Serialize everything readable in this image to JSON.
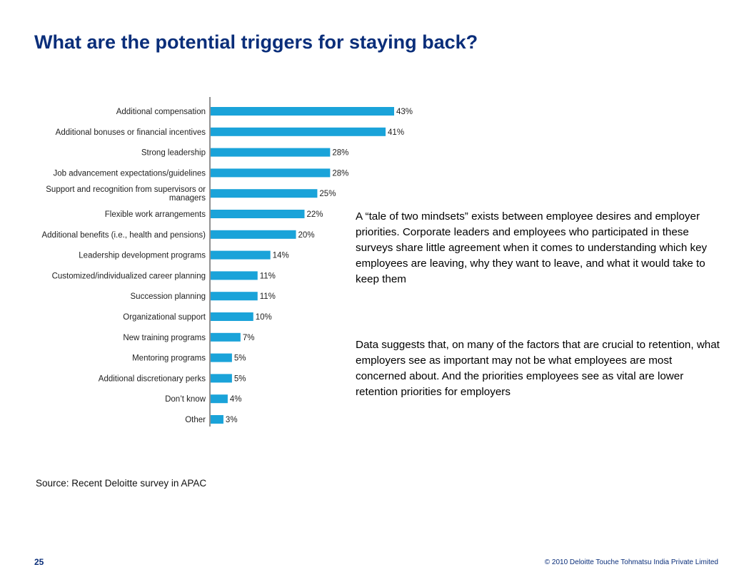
{
  "slide": {
    "title": "What are the potential triggers for staying back?",
    "paragraphs": [
      "A “tale of two mindsets” exists between employee desires and employer priorities. Corporate leaders and employees who participated in these surveys share little agreement when it comes to understanding which key employees are leaving, why they want to leave, and what it would take to keep them",
      "Data suggests that, on many of the factors that are crucial to retention, what employers see as important may not be what employees are most concerned about. And the priorities employees see as vital are lower retention priorities for employers"
    ],
    "source": "Source: Recent Deloitte survey in APAC",
    "page_number": "25",
    "copyright": "© 2010 Deloitte Touche Tohmatsu India Private Limited"
  },
  "chart_data": {
    "type": "bar",
    "orientation": "horizontal",
    "bar_color": "#1aa3d9",
    "categories": [
      [
        "Additional compensation"
      ],
      [
        "Additional bonuses or financial incentives"
      ],
      [
        "Strong leadership"
      ],
      [
        "Job advancement expectations/guidelines"
      ],
      [
        "Support and recognition from supervisors or",
        "managers"
      ],
      [
        "Flexible work arrangements"
      ],
      [
        "Additional benefits (i.e., health and pensions)"
      ],
      [
        "Leadership development programs"
      ],
      [
        "Customized/individualized career planning"
      ],
      [
        "Succession planning"
      ],
      [
        "Organizational support"
      ],
      [
        "New training programs"
      ],
      [
        "Mentoring programs"
      ],
      [
        "Additional discretionary perks"
      ],
      [
        "Don’t know"
      ],
      [
        "Other"
      ]
    ],
    "values": [
      43,
      41,
      28,
      28,
      25,
      22,
      20,
      14,
      11,
      11,
      10,
      7,
      5,
      5,
      4,
      3
    ],
    "value_labels": [
      "43%",
      "41%",
      "28%",
      "28%",
      "25%",
      "22%",
      "20%",
      "14%",
      "11%",
      "11%",
      "10%",
      "7%",
      "5%",
      "5%",
      "4%",
      "3%"
    ],
    "xlim": [
      0,
      43
    ]
  }
}
